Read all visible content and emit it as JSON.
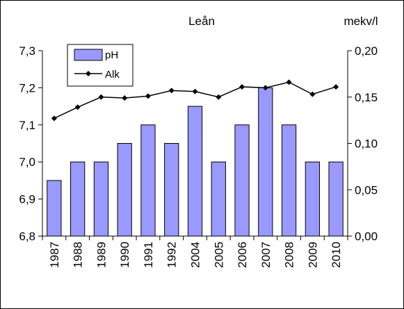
{
  "chart_data": {
    "type": "bar+line",
    "title": "Leån",
    "categories": [
      "1987",
      "1988",
      "1989",
      "1990",
      "1991",
      "1992",
      "2004",
      "2005",
      "2006",
      "2007",
      "2008",
      "2009",
      "2010"
    ],
    "series": [
      {
        "name": "pH",
        "type": "bar",
        "axis": "left",
        "color": "#9999FF",
        "values": [
          6.95,
          7.0,
          7.0,
          7.05,
          7.1,
          7.05,
          7.15,
          7.0,
          7.1,
          7.2,
          7.1,
          7.0,
          7.0
        ]
      },
      {
        "name": "Alk",
        "type": "line",
        "axis": "right",
        "color": "#000000",
        "marker": "diamond",
        "values": [
          0.127,
          0.139,
          0.15,
          0.149,
          0.151,
          0.157,
          0.156,
          0.15,
          0.161,
          0.16,
          0.166,
          0.153,
          0.161
        ]
      }
    ],
    "y_left": {
      "ylim": [
        6.8,
        7.3
      ],
      "ticks": [
        "6,8",
        "6,9",
        "7,0",
        "7,1",
        "7,2",
        "7,3"
      ],
      "tick_values": [
        6.8,
        6.9,
        7.0,
        7.1,
        7.2,
        7.3
      ]
    },
    "y_right": {
      "label": "mekv/l",
      "ylim": [
        0,
        0.2
      ],
      "ticks": [
        "0,00",
        "0,05",
        "0,10",
        "0,15",
        "0,20"
      ],
      "tick_values": [
        0,
        0.05,
        0.1,
        0.15,
        0.2
      ]
    },
    "legend": {
      "position": "top-left",
      "entries": [
        "pH",
        "Alk"
      ]
    },
    "grid": false
  }
}
